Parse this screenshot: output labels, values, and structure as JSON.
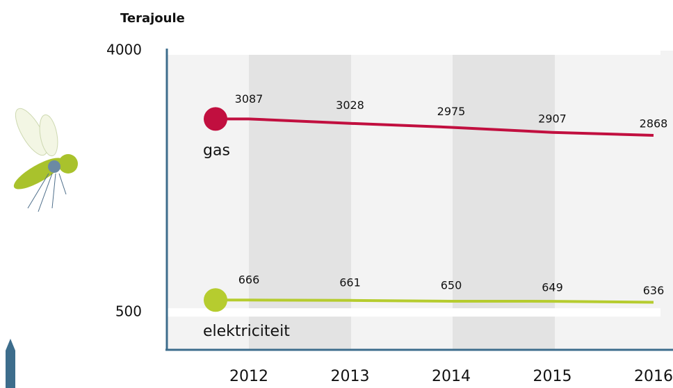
{
  "chart_data": {
    "type": "line",
    "y_label": "Terajoule",
    "categories": [
      "2012",
      "2013",
      "2014",
      "2015",
      "2016"
    ],
    "series": [
      {
        "name": "gas",
        "color": "#c10f3f",
        "values": [
          3087,
          3028,
          2975,
          2907,
          2868
        ]
      },
      {
        "name": "elektriciteit",
        "color": "#b6cc2f",
        "values": [
          666,
          661,
          650,
          649,
          636
        ]
      }
    ],
    "ylim": [
      0,
      4000
    ],
    "yticks": [
      500,
      4000
    ],
    "grid": true
  }
}
